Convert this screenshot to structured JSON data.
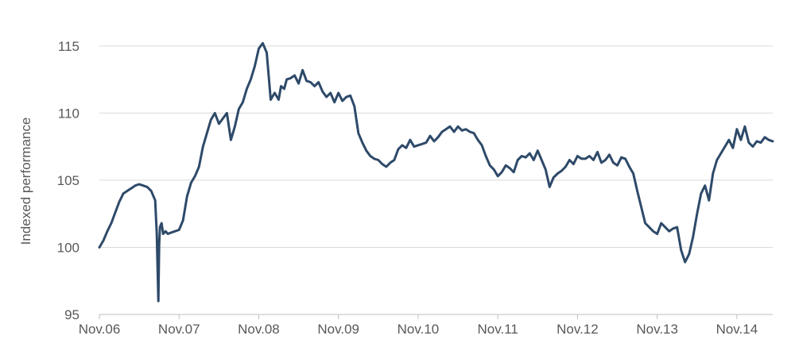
{
  "chart_data": {
    "type": "line",
    "title": "",
    "xlabel": "",
    "ylabel": "Indexed performance",
    "ylim": [
      95,
      117
    ],
    "yticks": [
      95,
      100,
      105,
      110,
      115
    ],
    "xlim": [
      0,
      8.45
    ],
    "xticks": [
      {
        "label": "Nov.06",
        "value": 0
      },
      {
        "label": "Nov.07",
        "value": 1
      },
      {
        "label": "Nov.08",
        "value": 2
      },
      {
        "label": "Nov.09",
        "value": 3
      },
      {
        "label": "Nov.10",
        "value": 4
      },
      {
        "label": "Nov.11",
        "value": 5
      },
      {
        "label": "Nov.12",
        "value": 6
      },
      {
        "label": "Nov.13",
        "value": 7
      },
      {
        "label": "Nov.14",
        "value": 8
      }
    ],
    "grid": true,
    "legend": "none",
    "color": "#2e4a69",
    "series": [
      {
        "x": [
          0,
          0.05,
          0.1,
          0.15,
          0.2,
          0.25,
          0.3,
          0.35,
          0.4,
          0.45,
          0.5,
          0.55,
          0.6,
          0.65,
          0.7,
          0.72,
          0.74,
          0.75,
          0.76,
          0.78,
          0.8,
          0.83,
          0.86,
          0.9,
          0.95,
          1,
          1.05,
          1.1,
          1.15,
          1.2,
          1.25,
          1.3,
          1.35,
          1.4,
          1.45,
          1.5,
          1.55,
          1.6,
          1.65,
          1.7,
          1.75,
          1.8,
          1.85,
          1.9,
          1.95,
          2,
          2.05,
          2.1,
          2.15,
          2.2,
          2.25,
          2.28,
          2.32,
          2.35,
          2.4,
          2.45,
          2.5,
          2.55,
          2.6,
          2.65,
          2.7,
          2.75,
          2.8,
          2.85,
          2.9,
          2.95,
          3,
          3.05,
          3.1,
          3.15,
          3.2,
          3.25,
          3.3,
          3.35,
          3.4,
          3.45,
          3.5,
          3.55,
          3.6,
          3.65,
          3.7,
          3.75,
          3.8,
          3.85,
          3.9,
          3.95,
          4,
          4.05,
          4.1,
          4.15,
          4.2,
          4.25,
          4.3,
          4.35,
          4.4,
          4.45,
          4.5,
          4.55,
          4.6,
          4.65,
          4.7,
          4.75,
          4.8,
          4.85,
          4.9,
          4.95,
          5,
          5.05,
          5.1,
          5.15,
          5.2,
          5.25,
          5.3,
          5.35,
          5.4,
          5.45,
          5.5,
          5.55,
          5.6,
          5.65,
          5.7,
          5.75,
          5.8,
          5.85,
          5.9,
          5.95,
          6,
          6.05,
          6.1,
          6.15,
          6.2,
          6.25,
          6.3,
          6.35,
          6.4,
          6.45,
          6.5,
          6.55,
          6.6,
          6.65,
          6.7,
          6.75,
          6.8,
          6.85,
          6.9,
          6.95,
          7,
          7.05,
          7.1,
          7.15,
          7.2,
          7.25,
          7.3,
          7.35,
          7.4,
          7.45,
          7.5,
          7.55,
          7.6,
          7.65,
          7.7,
          7.75,
          7.8,
          7.85,
          7.9,
          7.95,
          8,
          8.05,
          8.1,
          8.15,
          8.2,
          8.25,
          8.3,
          8.35,
          8.4,
          8.45
        ],
        "y": [
          100,
          100.5,
          101.2,
          101.8,
          102.6,
          103.4,
          104,
          104.2,
          104.4,
          104.6,
          104.7,
          104.6,
          104.5,
          104.2,
          103.5,
          101,
          96,
          100.2,
          101.5,
          101.8,
          101,
          101.2,
          101,
          101.1,
          101.2,
          101.3,
          102,
          103.8,
          104.8,
          105.3,
          106,
          107.5,
          108.5,
          109.5,
          110,
          109.2,
          109.6,
          110,
          108,
          109,
          110.3,
          110.8,
          111.8,
          112.5,
          113.5,
          114.8,
          115.2,
          114.5,
          111,
          111.5,
          111,
          112,
          111.8,
          112.5,
          112.6,
          112.8,
          112.2,
          113.2,
          112.4,
          112.3,
          112,
          112.3,
          111.6,
          111.2,
          111.5,
          110.8,
          111.5,
          110.9,
          111.2,
          111.3,
          110.5,
          108.5,
          107.8,
          107.2,
          106.8,
          106.6,
          106.5,
          106.2,
          106,
          106.3,
          106.5,
          107.3,
          107.6,
          107.4,
          108,
          107.5,
          107.6,
          107.7,
          107.8,
          108.3,
          107.9,
          108.2,
          108.6,
          108.8,
          109,
          108.6,
          109,
          108.7,
          108.8,
          108.6,
          108.5,
          108,
          107.6,
          106.8,
          106.1,
          105.8,
          105.3,
          105.6,
          106.1,
          105.9,
          105.6,
          106.5,
          106.8,
          106.7,
          107,
          106.5,
          107.2,
          106.5,
          105.8,
          104.5,
          105.2,
          105.5,
          105.7,
          106,
          106.5,
          106.2,
          106.8,
          106.6,
          106.6,
          106.8,
          106.5,
          107.1,
          106.3,
          106.5,
          106.9,
          106.3,
          106.1,
          106.7,
          106.6,
          106,
          105.5,
          104.2,
          103,
          101.8,
          101.5,
          101.2,
          101,
          101.8,
          101.5,
          101.2,
          101.4,
          101.5,
          99.8,
          98.9,
          99.5,
          100.8,
          102.5,
          104,
          104.6,
          103.5,
          105.5,
          106.5,
          107,
          107.5,
          108,
          107.4,
          108.8,
          108,
          109,
          107.8,
          107.5,
          107.9,
          107.8,
          108.2,
          108,
          107.9
        ]
      }
    ]
  }
}
